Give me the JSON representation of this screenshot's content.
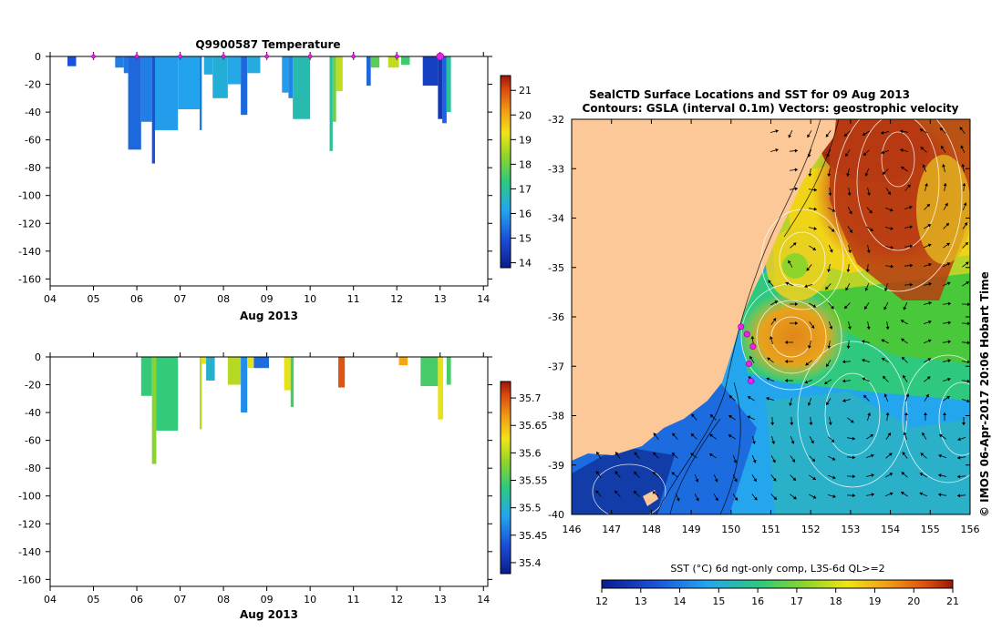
{
  "chart_data": [
    {
      "type": "heatmap",
      "title": "Q9900587  Temperature",
      "xlabel": "Aug 2013",
      "ylabel": "",
      "x_ticks": [
        "04",
        "05",
        "06",
        "07",
        "08",
        "09",
        "10",
        "11",
        "12",
        "13",
        "14"
      ],
      "xlim": [
        4,
        14.1
      ],
      "y_ticks": [
        0,
        -20,
        -40,
        -60,
        -80,
        -100,
        -120,
        -140,
        -160
      ],
      "ylim": [
        -165,
        0
      ],
      "surface_markers_x": [
        5,
        6,
        7,
        8,
        9,
        10,
        11,
        12,
        13
      ],
      "colorbar": {
        "ticks": [
          "21",
          "20",
          "19",
          "18",
          "17",
          "16",
          "15",
          "14"
        ],
        "range": [
          13.8,
          21.6
        ]
      },
      "profiles": [
        {
          "x0": 4.4,
          "x1": 4.6,
          "depth": 7,
          "value": 15.0
        },
        {
          "x0": 5.5,
          "x1": 5.7,
          "depth": 8,
          "value": 15.6
        },
        {
          "x0": 5.7,
          "x1": 5.8,
          "depth": 12,
          "value": 15.5
        },
        {
          "x0": 5.8,
          "x1": 6.1,
          "depth": 67,
          "value": 15.3
        },
        {
          "x0": 6.1,
          "x1": 6.35,
          "depth": 47,
          "value": 15.6
        },
        {
          "x0": 6.35,
          "x1": 6.42,
          "depth": 77,
          "value": 15.0
        },
        {
          "x0": 6.42,
          "x1": 6.95,
          "depth": 53,
          "value": 16.0
        },
        {
          "x0": 6.95,
          "x1": 7.45,
          "depth": 38,
          "value": 16.1
        },
        {
          "x0": 7.45,
          "x1": 7.5,
          "depth": 53,
          "value": 15.5
        },
        {
          "x0": 7.55,
          "x1": 7.75,
          "depth": 13,
          "value": 16.3
        },
        {
          "x0": 7.75,
          "x1": 8.1,
          "depth": 30,
          "value": 16.4
        },
        {
          "x0": 8.1,
          "x1": 8.4,
          "depth": 20,
          "value": 16.2
        },
        {
          "x0": 8.4,
          "x1": 8.55,
          "depth": 42,
          "value": 15.3
        },
        {
          "x0": 8.55,
          "x1": 8.85,
          "depth": 12,
          "value": 16.3
        },
        {
          "x0": 9.35,
          "x1": 9.5,
          "depth": 26,
          "value": 16.0
        },
        {
          "x0": 9.5,
          "x1": 9.6,
          "depth": 30,
          "value": 15.7
        },
        {
          "x0": 9.6,
          "x1": 10.0,
          "depth": 45,
          "value": 16.8
        },
        {
          "x0": 10.45,
          "x1": 10.52,
          "depth": 68,
          "value": 17.0
        },
        {
          "x0": 10.52,
          "x1": 10.6,
          "depth": 47,
          "value": 18.0
        },
        {
          "x0": 10.6,
          "x1": 10.75,
          "depth": 25,
          "value": 18.8
        },
        {
          "x0": 11.3,
          "x1": 11.4,
          "depth": 21,
          "value": 15.3
        },
        {
          "x0": 11.4,
          "x1": 11.6,
          "depth": 8,
          "value": 17.8
        },
        {
          "x0": 11.8,
          "x1": 12.05,
          "depth": 8,
          "value": 18.8
        },
        {
          "x0": 12.1,
          "x1": 12.3,
          "depth": 6,
          "value": 17.5
        },
        {
          "x0": 12.6,
          "x1": 12.95,
          "depth": 21,
          "value": 14.6
        },
        {
          "x0": 12.95,
          "x1": 13.05,
          "depth": 45,
          "value": 14.4
        },
        {
          "x0": 13.05,
          "x1": 13.15,
          "depth": 48,
          "value": 15.2
        },
        {
          "x0": 13.15,
          "x1": 13.25,
          "depth": 40,
          "value": 17.0
        }
      ]
    },
    {
      "type": "heatmap",
      "title": "",
      "xlabel": "Aug 2013",
      "ylabel": "",
      "x_ticks": [
        "04",
        "05",
        "06",
        "07",
        "08",
        "09",
        "10",
        "11",
        "12",
        "13",
        "14"
      ],
      "xlim": [
        4,
        14.1
      ],
      "y_ticks": [
        0,
        -20,
        -40,
        -60,
        -80,
        -100,
        -120,
        -140,
        -160
      ],
      "ylim": [
        -165,
        0
      ],
      "colorbar": {
        "ticks": [
          "35.7",
          "35.65",
          "35.6",
          "35.55",
          "35.5",
          "35.45",
          "35.4"
        ],
        "range": [
          35.38,
          35.73
        ]
      },
      "profiles": [
        {
          "x0": 6.1,
          "x1": 6.35,
          "depth": 28,
          "value": 35.54
        },
        {
          "x0": 6.35,
          "x1": 6.45,
          "depth": 77,
          "value": 35.58
        },
        {
          "x0": 6.45,
          "x1": 6.95,
          "depth": 53,
          "value": 35.54
        },
        {
          "x0": 7.45,
          "x1": 7.5,
          "depth": 52,
          "value": 35.6
        },
        {
          "x0": 7.5,
          "x1": 7.6,
          "depth": 5,
          "value": 35.62
        },
        {
          "x0": 7.6,
          "x1": 7.8,
          "depth": 17,
          "value": 35.5
        },
        {
          "x0": 8.1,
          "x1": 8.4,
          "depth": 20,
          "value": 35.6
        },
        {
          "x0": 8.4,
          "x1": 8.55,
          "depth": 40,
          "value": 35.47
        },
        {
          "x0": 8.55,
          "x1": 8.7,
          "depth": 8,
          "value": 35.62
        },
        {
          "x0": 8.7,
          "x1": 9.05,
          "depth": 8,
          "value": 35.45
        },
        {
          "x0": 9.4,
          "x1": 9.55,
          "depth": 24,
          "value": 35.62
        },
        {
          "x0": 9.55,
          "x1": 9.62,
          "depth": 36,
          "value": 35.55
        },
        {
          "x0": 10.65,
          "x1": 10.8,
          "depth": 22,
          "value": 35.7
        },
        {
          "x0": 12.05,
          "x1": 12.25,
          "depth": 6,
          "value": 35.66
        },
        {
          "x0": 12.55,
          "x1": 12.95,
          "depth": 21,
          "value": 35.55
        },
        {
          "x0": 12.95,
          "x1": 13.07,
          "depth": 45,
          "value": 35.62
        },
        {
          "x0": 13.15,
          "x1": 13.25,
          "depth": 20,
          "value": 35.55
        }
      ]
    },
    {
      "type": "heatmap",
      "title": "SealCTD Surface Locations and SST for 09 Aug 2013",
      "subtitle": "Contours: GSLA (interval 0.1m) Vectors: geostrophic velocity",
      "xlabel": "",
      "ylabel": "",
      "x_ticks": [
        "146",
        "147",
        "148",
        "149",
        "150",
        "151",
        "152",
        "153",
        "154",
        "155",
        "156"
      ],
      "xlim": [
        146,
        156
      ],
      "y_ticks": [
        "-32",
        "-33",
        "-34",
        "-35",
        "-36",
        "-37",
        "-38",
        "-39",
        "-40"
      ],
      "ylim": [
        -40,
        -32
      ],
      "colorbar": {
        "label": "SST (°C) 6d ngt-only comp, L3S-6d QL>=2",
        "ticks": [
          "12",
          "13",
          "14",
          "15",
          "16",
          "17",
          "18",
          "19",
          "20",
          "21"
        ],
        "range": [
          12,
          21
        ]
      },
      "seal_locations": [
        {
          "lon": 150.25,
          "lat": -36.2
        },
        {
          "lon": 150.4,
          "lat": -36.35
        },
        {
          "lon": 150.55,
          "lat": -36.6
        },
        {
          "lon": 150.45,
          "lat": -36.95
        },
        {
          "lon": 150.5,
          "lat": -37.3
        }
      ],
      "credit": "© IMOS 06-Apr-2017 20:06 Hobart Time"
    }
  ]
}
